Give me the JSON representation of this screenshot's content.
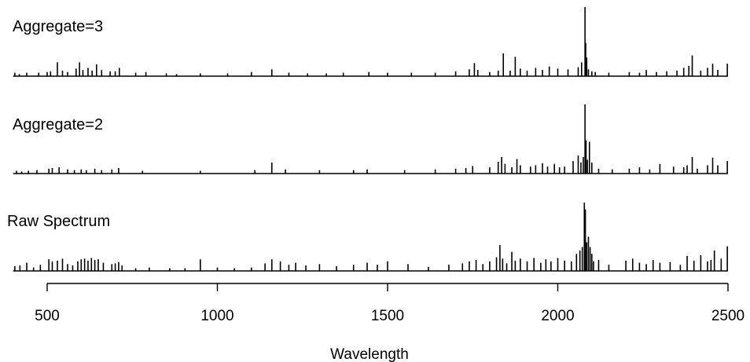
{
  "chart_data": {
    "type": "bar",
    "xlabel": "Wavelength",
    "xlim": [
      400,
      2500
    ],
    "x_ticks": [
      "500",
      "1000",
      "1500",
      "2000",
      "2500"
    ],
    "x_tick_values": [
      500,
      1000,
      1500,
      2000,
      2500
    ],
    "grid": false,
    "legend": "none",
    "line_color": "#000000",
    "panels": [
      {
        "label": "Aggregate=3",
        "series": {
          "x": [
            405,
            418,
            440,
            475,
            500,
            510,
            530,
            545,
            560,
            585,
            595,
            605,
            620,
            632,
            645,
            660,
            685,
            700,
            712,
            760,
            790,
            850,
            880,
            950,
            1030,
            1100,
            1160,
            1210,
            1265,
            1320,
            1370,
            1445,
            1500,
            1570,
            1640,
            1700,
            1740,
            1755,
            1765,
            1800,
            1825,
            1840,
            1860,
            1875,
            1890,
            1910,
            1935,
            1955,
            1975,
            2000,
            2030,
            2060,
            2070,
            2080,
            2082,
            2085,
            2090,
            2100,
            2110,
            2150,
            2210,
            2240,
            2260,
            2290,
            2320,
            2350,
            2370,
            2385,
            2395,
            2420,
            2440,
            2455,
            2470,
            2498
          ],
          "y": [
            0.05,
            0.03,
            0.05,
            0.05,
            0.06,
            0.07,
            0.2,
            0.08,
            0.06,
            0.11,
            0.2,
            0.09,
            0.12,
            0.08,
            0.17,
            0.09,
            0.07,
            0.07,
            0.12,
            0.05,
            0.06,
            0.04,
            0.03,
            0.04,
            0.04,
            0.06,
            0.1,
            0.05,
            0.04,
            0.04,
            0.05,
            0.06,
            0.05,
            0.05,
            0.05,
            0.07,
            0.1,
            0.19,
            0.09,
            0.06,
            0.08,
            0.33,
            0.08,
            0.28,
            0.11,
            0.08,
            0.12,
            0.09,
            0.14,
            0.11,
            0.1,
            0.13,
            0.2,
            1.0,
            0.48,
            0.27,
            0.1,
            0.07,
            0.06,
            0.05,
            0.06,
            0.05,
            0.09,
            0.06,
            0.07,
            0.08,
            0.12,
            0.15,
            0.3,
            0.08,
            0.12,
            0.18,
            0.09,
            0.18
          ]
        }
      },
      {
        "label": "Aggregate=2",
        "series": {
          "x": [
            410,
            425,
            445,
            470,
            505,
            515,
            535,
            560,
            580,
            600,
            615,
            640,
            660,
            690,
            710,
            780,
            950,
            1110,
            1160,
            1200,
            1300,
            1400,
            1440,
            1550,
            1640,
            1700,
            1730,
            1750,
            1800,
            1825,
            1835,
            1845,
            1865,
            1880,
            1890,
            1920,
            1935,
            1955,
            1970,
            1990,
            2005,
            2020,
            2045,
            2060,
            2068,
            2075,
            2080,
            2083,
            2087,
            2093,
            2100,
            2120,
            2160,
            2210,
            2240,
            2270,
            2300,
            2340,
            2370,
            2380,
            2395,
            2410,
            2440,
            2455,
            2470,
            2498
          ],
          "y": [
            0.04,
            0.03,
            0.04,
            0.05,
            0.07,
            0.08,
            0.09,
            0.06,
            0.05,
            0.06,
            0.05,
            0.07,
            0.05,
            0.06,
            0.08,
            0.04,
            0.04,
            0.05,
            0.16,
            0.06,
            0.05,
            0.05,
            0.06,
            0.05,
            0.06,
            0.07,
            0.08,
            0.11,
            0.09,
            0.17,
            0.24,
            0.14,
            0.09,
            0.21,
            0.12,
            0.1,
            0.12,
            0.15,
            0.1,
            0.14,
            0.09,
            0.1,
            0.18,
            0.26,
            0.16,
            0.24,
            1.0,
            0.48,
            0.2,
            0.46,
            0.16,
            0.07,
            0.06,
            0.07,
            0.09,
            0.06,
            0.14,
            0.1,
            0.09,
            0.12,
            0.24,
            0.07,
            0.12,
            0.23,
            0.12,
            0.18
          ]
        }
      },
      {
        "label": "Raw Spectrum",
        "series": {
          "x": [
            405,
            420,
            440,
            460,
            480,
            505,
            515,
            530,
            545,
            560,
            575,
            590,
            600,
            610,
            620,
            630,
            640,
            650,
            665,
            690,
            700,
            710,
            720,
            760,
            800,
            860,
            905,
            950,
            1000,
            1050,
            1100,
            1140,
            1160,
            1185,
            1210,
            1230,
            1260,
            1300,
            1350,
            1400,
            1440,
            1470,
            1500,
            1560,
            1620,
            1680,
            1720,
            1740,
            1760,
            1780,
            1800,
            1820,
            1830,
            1838,
            1850,
            1865,
            1875,
            1890,
            1910,
            1930,
            1950,
            1965,
            1980,
            2000,
            2020,
            2040,
            2055,
            2065,
            2072,
            2078,
            2081,
            2085,
            2090,
            2095,
            2100,
            2105,
            2120,
            2150,
            2200,
            2220,
            2240,
            2260,
            2280,
            2300,
            2330,
            2360,
            2380,
            2400,
            2420,
            2440,
            2450,
            2460,
            2480,
            2498
          ],
          "y": [
            0.07,
            0.08,
            0.12,
            0.05,
            0.09,
            0.17,
            0.14,
            0.15,
            0.18,
            0.1,
            0.08,
            0.14,
            0.17,
            0.18,
            0.15,
            0.19,
            0.16,
            0.17,
            0.12,
            0.1,
            0.11,
            0.13,
            0.08,
            0.04,
            0.05,
            0.04,
            0.04,
            0.17,
            0.05,
            0.04,
            0.05,
            0.11,
            0.17,
            0.14,
            0.09,
            0.12,
            0.08,
            0.1,
            0.07,
            0.09,
            0.12,
            0.09,
            0.14,
            0.1,
            0.06,
            0.09,
            0.11,
            0.14,
            0.16,
            0.1,
            0.14,
            0.2,
            0.38,
            0.18,
            0.11,
            0.28,
            0.15,
            0.18,
            0.14,
            0.19,
            0.12,
            0.17,
            0.14,
            0.19,
            0.15,
            0.14,
            0.25,
            0.3,
            0.35,
            1.0,
            0.9,
            0.42,
            0.5,
            0.35,
            0.25,
            0.14,
            0.16,
            0.09,
            0.15,
            0.18,
            0.12,
            0.1,
            0.16,
            0.12,
            0.13,
            0.09,
            0.22,
            0.15,
            0.23,
            0.14,
            0.16,
            0.3,
            0.18,
            0.36
          ]
        }
      }
    ]
  }
}
